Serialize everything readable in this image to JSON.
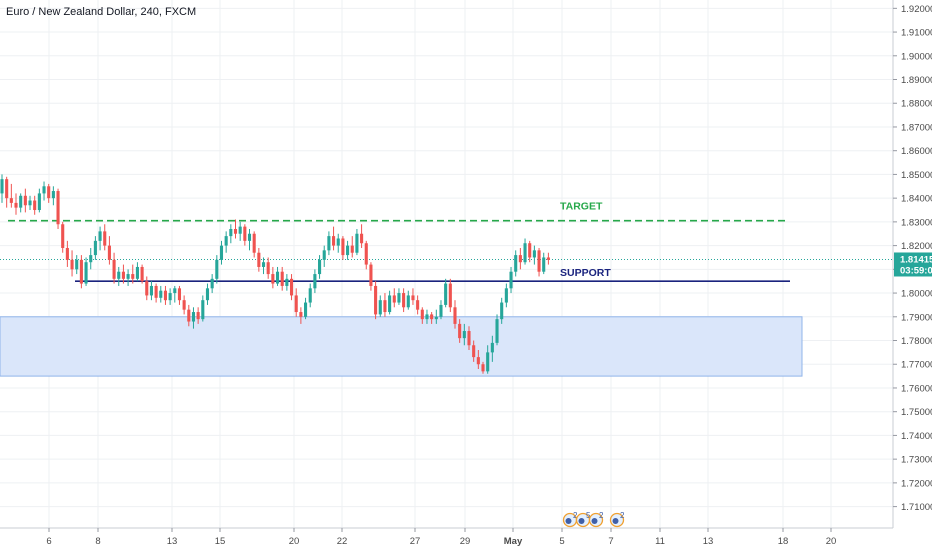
{
  "chart_data": {
    "type": "candlestick",
    "title": "Euro / New Zealand Dollar, 240, FXCM",
    "price_tag": "1.81415",
    "timer_tag": "03:59:09",
    "y_ticks": [
      "1.92000",
      "1.91000",
      "1.90000",
      "1.89000",
      "1.88000",
      "1.87000",
      "1.86000",
      "1.85000",
      "1.84000",
      "1.83000",
      "1.82000",
      "1.81000",
      "1.80000",
      "1.79000",
      "1.78000",
      "1.77000",
      "1.76000",
      "1.75000",
      "1.74000",
      "1.73000",
      "1.72000",
      "1.71000"
    ],
    "ylim": [
      1.7025,
      1.9225
    ],
    "x_ticks": [
      "6",
      "8",
      "13",
      "15",
      "20",
      "22",
      "27",
      "29",
      "May",
      "5",
      "7",
      "11",
      "13",
      "18",
      "20"
    ],
    "x_ticks_bold": [
      "May"
    ],
    "last_price": 1.81415,
    "target_level": 1.8305,
    "support_level": 1.805,
    "demand_zone": [
      1.765,
      1.79
    ],
    "annotations": {
      "target": "TARGET",
      "support": "SUPPORT"
    },
    "event_markers": [
      "2",
      "5",
      "2",
      "2"
    ],
    "candles": [
      [
        1.842,
        1.85,
        1.838,
        1.848
      ],
      [
        1.848,
        1.849,
        1.836,
        1.84
      ],
      [
        1.84,
        1.846,
        1.836,
        1.838
      ],
      [
        1.838,
        1.842,
        1.833,
        1.836
      ],
      [
        1.836,
        1.842,
        1.834,
        1.841
      ],
      [
        1.841,
        1.844,
        1.834,
        1.837
      ],
      [
        1.837,
        1.841,
        1.835,
        1.839
      ],
      [
        1.839,
        1.841,
        1.833,
        1.835
      ],
      [
        1.835,
        1.844,
        1.834,
        1.842
      ],
      [
        1.842,
        1.847,
        1.839,
        1.845
      ],
      [
        1.845,
        1.846,
        1.838,
        1.84
      ],
      [
        1.84,
        1.845,
        1.837,
        1.843
      ],
      [
        1.843,
        1.844,
        1.827,
        1.829
      ],
      [
        1.829,
        1.83,
        1.817,
        1.819
      ],
      [
        1.819,
        1.822,
        1.811,
        1.814
      ],
      [
        1.814,
        1.818,
        1.807,
        1.81
      ],
      [
        1.81,
        1.816,
        1.808,
        1.814
      ],
      [
        1.814,
        1.816,
        1.802,
        1.804
      ],
      [
        1.804,
        1.815,
        1.803,
        1.813
      ],
      [
        1.813,
        1.819,
        1.81,
        1.816
      ],
      [
        1.816,
        1.824,
        1.814,
        1.822
      ],
      [
        1.822,
        1.828,
        1.818,
        1.826
      ],
      [
        1.826,
        1.829,
        1.818,
        1.82
      ],
      [
        1.82,
        1.824,
        1.812,
        1.814
      ],
      [
        1.814,
        1.817,
        1.804,
        1.806
      ],
      [
        1.806,
        1.811,
        1.803,
        1.809
      ],
      [
        1.809,
        1.812,
        1.804,
        1.806
      ],
      [
        1.806,
        1.81,
        1.803,
        1.808
      ],
      [
        1.808,
        1.812,
        1.804,
        1.806
      ],
      [
        1.806,
        1.813,
        1.805,
        1.811
      ],
      [
        1.811,
        1.812,
        1.804,
        1.805
      ],
      [
        1.805,
        1.807,
        1.797,
        1.799
      ],
      [
        1.799,
        1.805,
        1.797,
        1.803
      ],
      [
        1.803,
        1.804,
        1.796,
        1.798
      ],
      [
        1.798,
        1.803,
        1.796,
        1.801
      ],
      [
        1.801,
        1.803,
        1.795,
        1.797
      ],
      [
        1.797,
        1.802,
        1.795,
        1.8
      ],
      [
        1.8,
        1.803,
        1.796,
        1.802
      ],
      [
        1.802,
        1.803,
        1.795,
        1.797
      ],
      [
        1.797,
        1.799,
        1.791,
        1.793
      ],
      [
        1.793,
        1.795,
        1.786,
        1.788
      ],
      [
        1.788,
        1.794,
        1.785,
        1.792
      ],
      [
        1.792,
        1.794,
        1.787,
        1.789
      ],
      [
        1.789,
        1.799,
        1.788,
        1.797
      ],
      [
        1.797,
        1.804,
        1.795,
        1.802
      ],
      [
        1.802,
        1.808,
        1.8,
        1.806
      ],
      [
        1.806,
        1.816,
        1.804,
        1.814
      ],
      [
        1.814,
        1.822,
        1.812,
        1.82
      ],
      [
        1.82,
        1.826,
        1.817,
        1.824
      ],
      [
        1.824,
        1.829,
        1.821,
        1.827
      ],
      [
        1.827,
        1.831,
        1.823,
        1.825
      ],
      [
        1.825,
        1.83,
        1.822,
        1.828
      ],
      [
        1.828,
        1.829,
        1.82,
        1.822
      ],
      [
        1.822,
        1.827,
        1.818,
        1.825
      ],
      [
        1.825,
        1.826,
        1.815,
        1.817
      ],
      [
        1.817,
        1.819,
        1.809,
        1.811
      ],
      [
        1.811,
        1.815,
        1.808,
        1.813
      ],
      [
        1.813,
        1.815,
        1.806,
        1.808
      ],
      [
        1.808,
        1.811,
        1.802,
        1.804
      ],
      [
        1.804,
        1.811,
        1.803,
        1.809
      ],
      [
        1.809,
        1.811,
        1.801,
        1.803
      ],
      [
        1.803,
        1.808,
        1.801,
        1.806
      ],
      [
        1.806,
        1.808,
        1.797,
        1.799
      ],
      [
        1.799,
        1.802,
        1.79,
        1.792
      ],
      [
        1.792,
        1.794,
        1.787,
        1.79
      ],
      [
        1.79,
        1.798,
        1.789,
        1.796
      ],
      [
        1.796,
        1.804,
        1.794,
        1.802
      ],
      [
        1.802,
        1.81,
        1.8,
        1.808
      ],
      [
        1.808,
        1.816,
        1.806,
        1.814
      ],
      [
        1.814,
        1.82,
        1.811,
        1.818
      ],
      [
        1.818,
        1.826,
        1.816,
        1.824
      ],
      [
        1.824,
        1.828,
        1.818,
        1.82
      ],
      [
        1.82,
        1.825,
        1.817,
        1.823
      ],
      [
        1.823,
        1.824,
        1.814,
        1.816
      ],
      [
        1.816,
        1.822,
        1.814,
        1.82
      ],
      [
        1.82,
        1.824,
        1.815,
        1.817
      ],
      [
        1.817,
        1.827,
        1.816,
        1.825
      ],
      [
        1.825,
        1.829,
        1.819,
        1.821
      ],
      [
        1.821,
        1.822,
        1.81,
        1.812
      ],
      [
        1.812,
        1.813,
        1.801,
        1.803
      ],
      [
        1.803,
        1.805,
        1.789,
        1.791
      ],
      [
        1.791,
        1.799,
        1.79,
        1.797
      ],
      [
        1.797,
        1.8,
        1.79,
        1.792
      ],
      [
        1.792,
        1.801,
        1.791,
        1.799
      ],
      [
        1.799,
        1.802,
        1.794,
        1.796
      ],
      [
        1.796,
        1.802,
        1.795,
        1.8
      ],
      [
        1.8,
        1.802,
        1.792,
        1.794
      ],
      [
        1.794,
        1.801,
        1.793,
        1.799
      ],
      [
        1.799,
        1.802,
        1.795,
        1.797
      ],
      [
        1.797,
        1.799,
        1.791,
        1.793
      ],
      [
        1.793,
        1.794,
        1.787,
        1.789
      ],
      [
        1.789,
        1.793,
        1.787,
        1.791
      ],
      [
        1.791,
        1.792,
        1.787,
        1.789
      ],
      [
        1.789,
        1.793,
        1.787,
        1.79
      ],
      [
        1.79,
        1.797,
        1.789,
        1.795
      ],
      [
        1.795,
        1.806,
        1.794,
        1.804
      ],
      [
        1.804,
        1.806,
        1.792,
        1.794
      ],
      [
        1.794,
        1.797,
        1.785,
        1.787
      ],
      [
        1.787,
        1.789,
        1.779,
        1.781
      ],
      [
        1.781,
        1.787,
        1.778,
        1.784
      ],
      [
        1.784,
        1.786,
        1.776,
        1.778
      ],
      [
        1.778,
        1.78,
        1.771,
        1.773
      ],
      [
        1.773,
        1.776,
        1.768,
        1.77
      ],
      [
        1.77,
        1.771,
        1.766,
        1.767
      ],
      [
        1.767,
        1.778,
        1.766,
        1.775
      ],
      [
        1.775,
        1.782,
        1.771,
        1.779
      ],
      [
        1.779,
        1.791,
        1.778,
        1.789
      ],
      [
        1.789,
        1.798,
        1.787,
        1.796
      ],
      [
        1.796,
        1.804,
        1.794,
        1.802
      ],
      [
        1.802,
        1.811,
        1.8,
        1.809
      ],
      [
        1.809,
        1.818,
        1.807,
        1.816
      ],
      [
        1.816,
        1.819,
        1.81,
        1.813
      ],
      [
        1.813,
        1.823,
        1.812,
        1.821
      ],
      [
        1.821,
        1.822,
        1.813,
        1.815
      ],
      [
        1.815,
        1.82,
        1.812,
        1.818
      ],
      [
        1.818,
        1.819,
        1.807,
        1.809
      ],
      [
        1.809,
        1.817,
        1.808,
        1.815
      ],
      [
        1.815,
        1.817,
        1.812,
        1.814
      ]
    ]
  },
  "colors": {
    "up": "#26a69a",
    "down": "#ef5350",
    "target": "#26a84a",
    "support": "#1a237e",
    "zone_fill": "#dae6fa",
    "zone_stroke": "#90b4ea",
    "price_tag_bg": "#26a69a"
  }
}
